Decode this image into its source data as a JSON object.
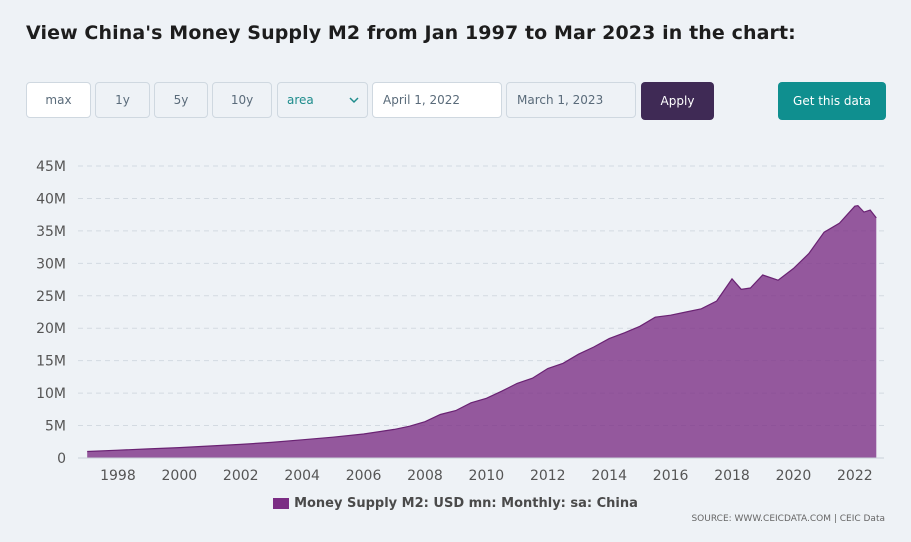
{
  "header": {
    "title": "View China's Money Supply M2 from Jan 1997 to Mar 2023 in the chart:"
  },
  "controls": {
    "ranges": [
      "max",
      "1y",
      "5y",
      "10y"
    ],
    "active_range": "max",
    "chart_type": "area",
    "date_from": "April 1, 2022",
    "date_to": "March 1, 2023",
    "apply_label": "Apply",
    "get_data_label": "Get this data"
  },
  "colors": {
    "series": "#7b2d84",
    "apply_bg": "#3f2a55",
    "get_data_bg": "#0f8f8f"
  },
  "chart_data": {
    "type": "area",
    "title": "",
    "xlabel": "",
    "ylabel": "",
    "ylim": [
      0,
      45000000
    ],
    "y_ticks": [
      "0",
      "5M",
      "10M",
      "15M",
      "20M",
      "25M",
      "30M",
      "35M",
      "40M",
      "45M"
    ],
    "x_ticks": [
      "1998",
      "2000",
      "2002",
      "2004",
      "2006",
      "2008",
      "2010",
      "2012",
      "2014",
      "2016",
      "2018",
      "2020",
      "2022"
    ],
    "grid": true,
    "legend_position": "bottom",
    "series": [
      {
        "name": "Money Supply M2: USD mn: Monthly: sa: China",
        "x": [
          1997.0,
          1998.0,
          1999.0,
          2000.0,
          2001.0,
          2002.0,
          2003.0,
          2004.0,
          2005.0,
          2006.0,
          2007.0,
          2007.5,
          2008.0,
          2008.5,
          2009.0,
          2009.5,
          2010.0,
          2010.5,
          2011.0,
          2011.5,
          2012.0,
          2012.5,
          2013.0,
          2013.5,
          2014.0,
          2014.5,
          2015.0,
          2015.5,
          2016.0,
          2016.5,
          2017.0,
          2017.5,
          2018.0,
          2018.3,
          2018.6,
          2019.0,
          2019.5,
          2020.0,
          2020.5,
          2021.0,
          2021.5,
          2022.0,
          2022.1,
          2022.3,
          2022.5,
          2022.7
        ],
        "values": [
          1000000,
          1200000,
          1400000,
          1600000,
          1850000,
          2100000,
          2400000,
          2800000,
          3200000,
          3700000,
          4400000,
          4900000,
          5600000,
          6700000,
          7300000,
          8500000,
          9200000,
          10300000,
          11500000,
          12300000,
          13800000,
          14600000,
          16000000,
          17100000,
          18400000,
          19300000,
          20300000,
          21700000,
          22000000,
          22500000,
          23000000,
          24200000,
          27600000,
          26000000,
          26200000,
          28200000,
          27400000,
          29200000,
          31500000,
          34800000,
          36200000,
          38800000,
          38900000,
          37900000,
          38200000,
          37000000
        ]
      }
    ]
  },
  "source": "SOURCE: WWW.CEICDATA.COM | CEIC Data"
}
